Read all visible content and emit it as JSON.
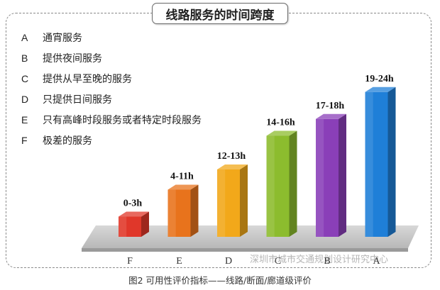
{
  "chart_data": {
    "type": "bar",
    "title": "线路服务的时间跨度",
    "categories": [
      "F",
      "E",
      "D",
      "C",
      "B",
      "A"
    ],
    "values": [
      3,
      7,
      10,
      15,
      17.5,
      21.5
    ],
    "value_labels": [
      "0-3h",
      "4-11h",
      "12-13h",
      "14-16h",
      "17-18h",
      "19-24h"
    ],
    "colors": [
      "#e0372a",
      "#e8731c",
      "#f2a81a",
      "#8cbc2e",
      "#8a3fb8",
      "#1f7fd8"
    ],
    "legend": [
      {
        "letter": "A",
        "text": "通宵服务"
      },
      {
        "letter": "B",
        "text": "提供夜间服务"
      },
      {
        "letter": "C",
        "text": "提供从早至晚的服务"
      },
      {
        "letter": "D",
        "text": "只提供日间服务"
      },
      {
        "letter": "E",
        "text": "只有高峰时段服务或者特定时段服务"
      },
      {
        "letter": "F",
        "text": "极差的服务"
      }
    ],
    "legend_placement": "top-left",
    "grid": false
  },
  "caption": "图2 可用性评价指标——线路/断面/廊道级评价",
  "watermark": "深圳市城市交通规划设计研究中心"
}
